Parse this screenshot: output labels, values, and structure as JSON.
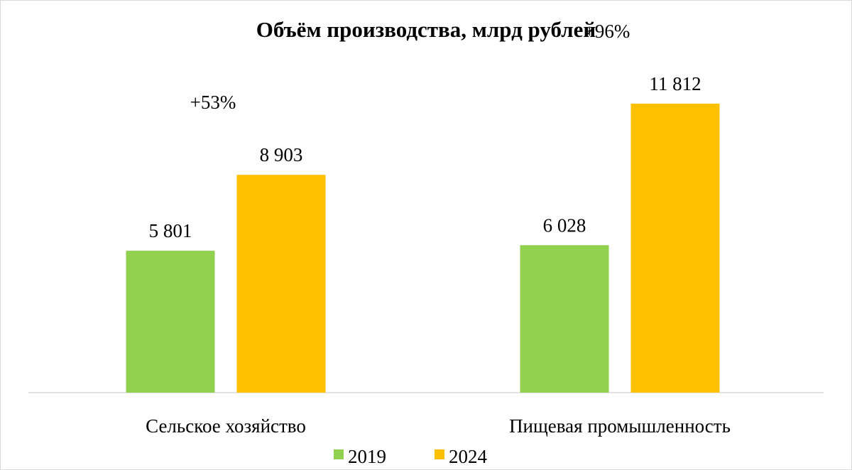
{
  "chart_data": {
    "type": "bar",
    "title": "Объём производства, млрд рублей",
    "categories": [
      "Сельское хозяйство",
      "Пищевая промышленность"
    ],
    "series": [
      {
        "name": "2019",
        "color": "#92d050",
        "values": [
          5801,
          6028
        ],
        "labels": [
          "5 801",
          "6 028"
        ]
      },
      {
        "name": "2024",
        "color": "#ffc000",
        "values": [
          8903,
          11812
        ],
        "labels": [
          "8 903",
          "11 812"
        ]
      }
    ],
    "annotations": [
      "+53%",
      "+96%"
    ],
    "ylim": [
      0,
      14000
    ],
    "grid": false,
    "legend_position": "bottom"
  }
}
